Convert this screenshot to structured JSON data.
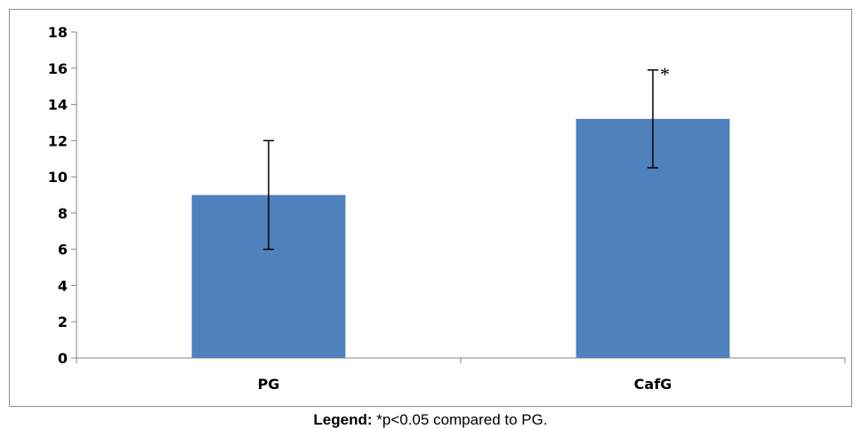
{
  "chart_data": {
    "type": "bar",
    "categories": [
      "PG",
      "CafG"
    ],
    "values": [
      9.0,
      13.2
    ],
    "error_bars": [
      {
        "low": 6.0,
        "high": 12.0
      },
      {
        "low": 10.5,
        "high": 15.9
      }
    ],
    "annotations": [
      "",
      "*"
    ],
    "ylim": [
      0,
      18
    ],
    "yticks": [
      0,
      2,
      4,
      6,
      8,
      10,
      12,
      14,
      16,
      18
    ],
    "ytick_labels": [
      "0",
      "2",
      "4",
      "6",
      "8",
      "10",
      "12",
      "14",
      "16",
      "18"
    ],
    "xlabel": "",
    "ylabel": "",
    "title": "",
    "grid": false,
    "bar_color": "#4f81bd"
  },
  "legend": {
    "label": "Legend:",
    "text": " *p<0.05 compared to PG."
  }
}
